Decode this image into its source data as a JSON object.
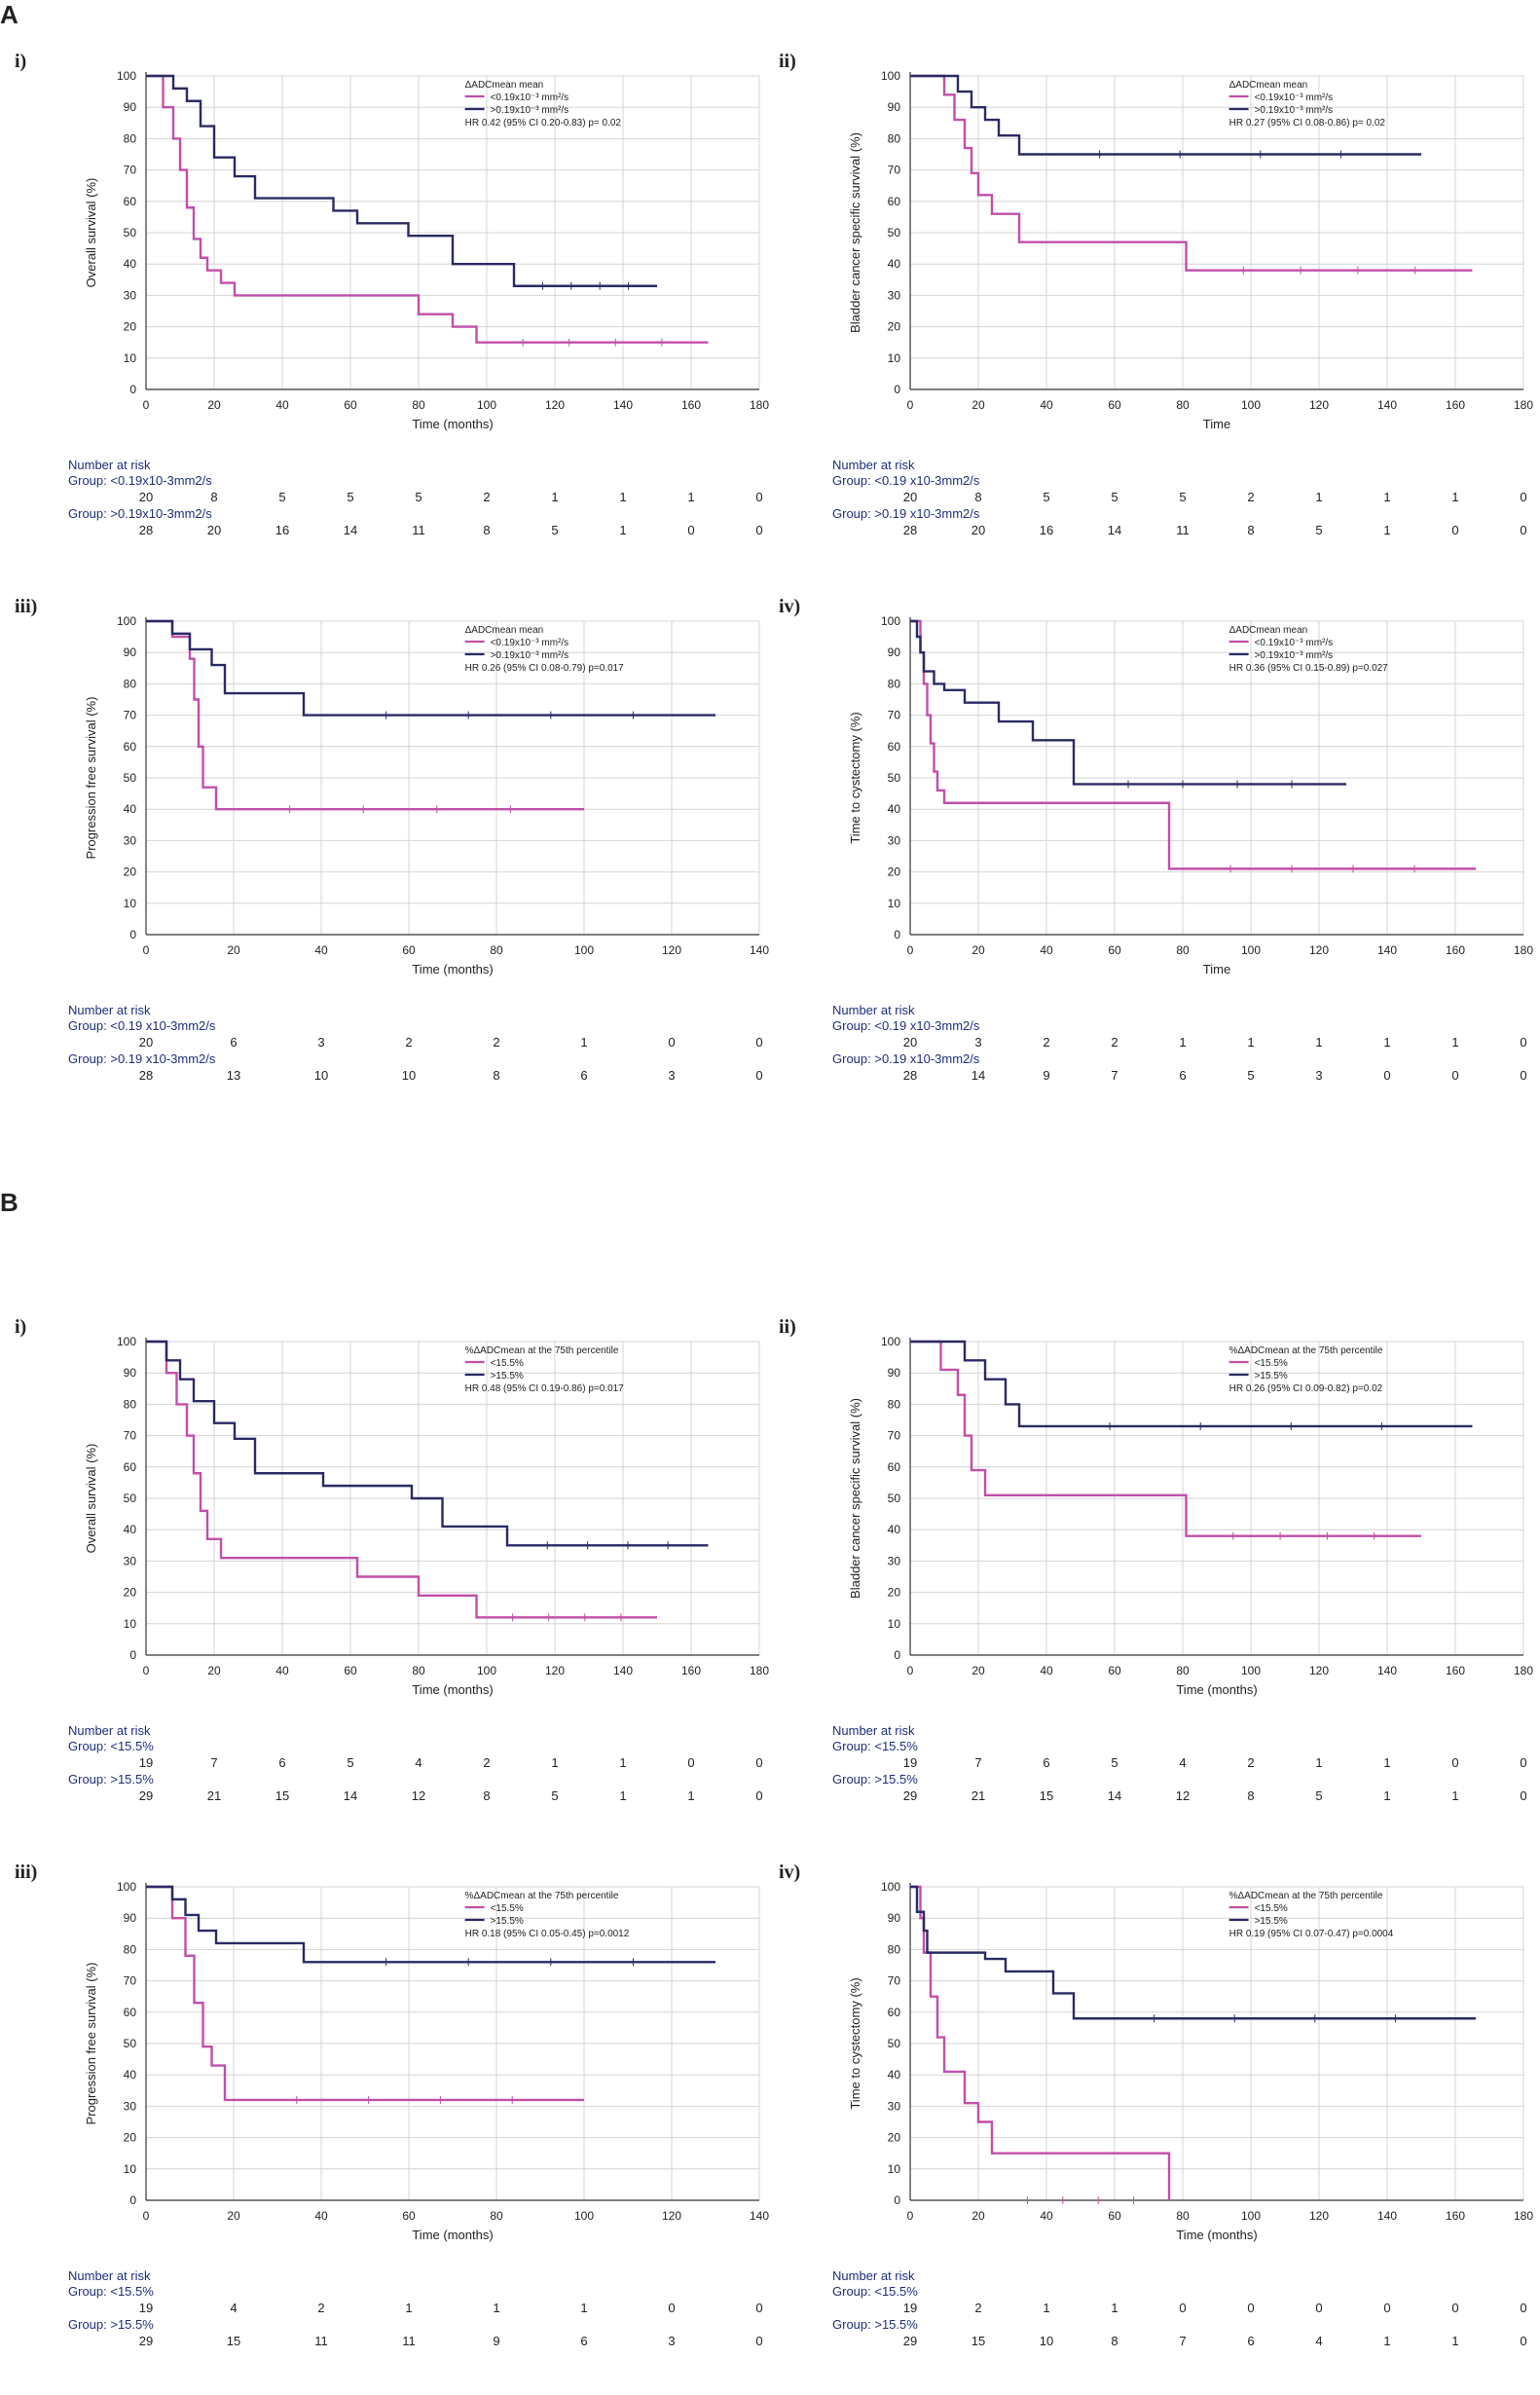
{
  "sections": [
    "A",
    "B"
  ],
  "colors": {
    "magenta": "#c14fa8",
    "navy": "#2a2a63",
    "grid": "#d4d4d4",
    "riskText": "#1f2d7a"
  },
  "panels": [
    {
      "section": "A",
      "label": "i)",
      "ylabel": "Overall survival (%)",
      "xlabel": "Time (months)",
      "xmax": 180,
      "xticks": [
        0,
        20,
        40,
        60,
        80,
        100,
        120,
        140,
        160,
        180
      ],
      "legend": [
        "ΔADCmean mean",
        "<0.19x10⁻³ mm²/s",
        ">0.19x10⁻³ mm²/s",
        "HR 0.42 (95% CI 0.20-0.83) p= 0.02"
      ],
      "risk": {
        "title": "Number at risk",
        "g1": "Group: <0.19x10-3mm2/s",
        "g2": "Group: >0.19x10-3mm2/s",
        "r1": [
          "20",
          "8",
          "5",
          "5",
          "5",
          "2",
          "1",
          "1",
          "1",
          "0"
        ],
        "r2": [
          "28",
          "20",
          "16",
          "14",
          "11",
          "8",
          "5",
          "1",
          "0",
          "0"
        ]
      }
    },
    {
      "section": "A",
      "label": "ii)",
      "ylabel": "Bladder cancer specific survival (%)",
      "xlabel": "Time",
      "xmax": 180,
      "xticks": [
        0,
        20,
        40,
        60,
        80,
        100,
        120,
        140,
        160,
        180
      ],
      "legend": [
        "ΔADCmean mean",
        "<0.19x10⁻³ mm²/s",
        ">0.19x10⁻³ mm²/s",
        "HR 0.27 (95% CI 0.08-0.86) p= 0.02"
      ],
      "risk": {
        "title": "Number at risk",
        "g1": "Group: <0.19 x10-3mm2/s",
        "g2": "Group: >0.19 x10-3mm2/s",
        "r1": [
          "20",
          "8",
          "5",
          "5",
          "5",
          "2",
          "1",
          "1",
          "1",
          "0"
        ],
        "r2": [
          "28",
          "20",
          "16",
          "14",
          "11",
          "8",
          "5",
          "1",
          "0",
          "0"
        ]
      }
    },
    {
      "section": "A",
      "label": "iii)",
      "ylabel": "Progression free survival (%)",
      "xlabel": "Time (months)",
      "xmax": 140,
      "xticks": [
        0,
        20,
        40,
        60,
        80,
        100,
        120,
        140
      ],
      "legend": [
        "ΔADCmean mean",
        "<0.19x10⁻³ mm²/s",
        ">0.19x10⁻³ mm²/s",
        "HR 0.26 (95% CI 0.08-0.79) p=0.017"
      ],
      "risk": {
        "title": "Number at risk",
        "g1": "Group: <0.19 x10-3mm2/s",
        "g2": "Group: >0.19 x10-3mm2/s",
        "r1": [
          "20",
          "6",
          "3",
          "2",
          "2",
          "1",
          "0",
          "0"
        ],
        "r2": [
          "28",
          "13",
          "10",
          "10",
          "8",
          "6",
          "3",
          "0"
        ]
      }
    },
    {
      "section": "A",
      "label": "iv)",
      "ylabel": "Time to cystectomy (%)",
      "xlabel": "Time",
      "xmax": 180,
      "xticks": [
        0,
        20,
        40,
        60,
        80,
        100,
        120,
        140,
        160,
        180
      ],
      "legend": [
        "ΔADCmean mean",
        "<0.19x10⁻³ mm²/s",
        ">0.19x10⁻³ mm²/s",
        "HR 0.36 (95% CI 0.15-0.89) p=0.027"
      ],
      "risk": {
        "title": "Number at risk",
        "g1": "Group: <0.19 x10-3mm2/s",
        "g2": "Group: >0.19 x10-3mm2/s",
        "r1": [
          "20",
          "3",
          "2",
          "2",
          "1",
          "1",
          "1",
          "1",
          "1",
          "0"
        ],
        "r2": [
          "28",
          "14",
          "9",
          "7",
          "6",
          "5",
          "3",
          "0",
          "0",
          "0"
        ]
      }
    },
    {
      "section": "B",
      "label": "i)",
      "ylabel": "Overall survival (%)",
      "xlabel": "Time (months)",
      "xmax": 180,
      "xticks": [
        0,
        20,
        40,
        60,
        80,
        100,
        120,
        140,
        160,
        180
      ],
      "legend": [
        "%ΔADCmean at the 75th percentile",
        "<15.5%",
        ">15.5%",
        "HR 0.48 (95% CI 0.19-0.86) p=0.017"
      ],
      "risk": {
        "title": "Number at risk",
        "g1": "Group: <15.5%",
        "g2": "Group: >15.5%",
        "r1": [
          "19",
          "7",
          "6",
          "5",
          "4",
          "2",
          "1",
          "1",
          "0",
          "0"
        ],
        "r2": [
          "29",
          "21",
          "15",
          "14",
          "12",
          "8",
          "5",
          "1",
          "1",
          "0"
        ]
      }
    },
    {
      "section": "B",
      "label": "ii)",
      "ylabel": "Bladder cancer specific survival (%)",
      "xlabel": "Time (months)",
      "xmax": 180,
      "xticks": [
        0,
        20,
        40,
        60,
        80,
        100,
        120,
        140,
        160,
        180
      ],
      "legend": [
        "%ΔADCmean at the 75th percentile",
        "<15.5%",
        ">15.5%",
        "HR 0.26 (95% CI 0.09-0.82) p=0.02"
      ],
      "risk": {
        "title": "Number at risk",
        "g1": "Group: <15.5%",
        "g2": "Group: >15.5%",
        "r1": [
          "19",
          "7",
          "6",
          "5",
          "4",
          "2",
          "1",
          "1",
          "0",
          "0"
        ],
        "r2": [
          "29",
          "21",
          "15",
          "14",
          "12",
          "8",
          "5",
          "1",
          "1",
          "0"
        ]
      }
    },
    {
      "section": "B",
      "label": "iii)",
      "ylabel": "Progression free survival (%)",
      "xlabel": "Time (months)",
      "xmax": 140,
      "xticks": [
        0,
        20,
        40,
        60,
        80,
        100,
        120,
        140
      ],
      "legend": [
        "%ΔADCmean at the 75th percentile",
        "<15.5%",
        ">15.5%",
        "HR 0.18 (95% CI 0.05-0.45) p=0.0012"
      ],
      "risk": {
        "title": "Number at risk",
        "g1": "Group: <15.5%",
        "g2": "Group: >15.5%",
        "r1": [
          "19",
          "4",
          "2",
          "1",
          "1",
          "1",
          "0",
          "0"
        ],
        "r2": [
          "29",
          "15",
          "11",
          "11",
          "9",
          "6",
          "3",
          "0"
        ]
      }
    },
    {
      "section": "B",
      "label": "iv)",
      "ylabel": "Time to cystectomy (%)",
      "xlabel": "Time (months)",
      "xmax": 180,
      "xticks": [
        0,
        20,
        40,
        60,
        80,
        100,
        120,
        140,
        160,
        180
      ],
      "legend": [
        "%ΔADCmean at the 75th percentile",
        "<15.5%",
        ">15.5%",
        "HR 0.19 (95% CI 0.07-0.47) p=0.0004"
      ],
      "risk": {
        "title": "Number at risk",
        "g1": "Group: <15.5%",
        "g2": "Group: >15.5%",
        "r1": [
          "19",
          "2",
          "1",
          "1",
          "0",
          "0",
          "0",
          "0",
          "0",
          "0"
        ],
        "r2": [
          "29",
          "15",
          "10",
          "8",
          "7",
          "6",
          "4",
          "1",
          "1",
          "0"
        ]
      }
    }
  ],
  "chart_data": [
    {
      "type": "line",
      "title": "A i) Overall survival",
      "xlabel": "Time (months)",
      "ylabel": "Overall survival (%)",
      "xlim": [
        0,
        180
      ],
      "ylim": [
        0,
        100
      ],
      "series": [
        {
          "name": "<0.19x10⁻³ mm²/s",
          "x": [
            0,
            5,
            8,
            10,
            12,
            14,
            16,
            18,
            22,
            26,
            33,
            80,
            90,
            97,
            165
          ],
          "y": [
            100,
            90,
            80,
            70,
            58,
            48,
            42,
            38,
            34,
            30,
            30,
            24,
            20,
            15,
            15
          ]
        },
        {
          "name": ">0.19x10⁻³ mm²/s",
          "x": [
            0,
            8,
            12,
            16,
            20,
            26,
            32,
            55,
            62,
            77,
            90,
            108,
            150
          ],
          "y": [
            100,
            96,
            92,
            84,
            74,
            68,
            61,
            57,
            53,
            49,
            40,
            33,
            33
          ]
        }
      ]
    },
    {
      "type": "line",
      "title": "A ii) Bladder cancer specific survival",
      "xlabel": "Time",
      "ylabel": "Bladder cancer specific survival (%)",
      "xlim": [
        0,
        180
      ],
      "ylim": [
        0,
        100
      ],
      "series": [
        {
          "name": "<0.19x10⁻³ mm²/s",
          "x": [
            0,
            10,
            13,
            16,
            18,
            20,
            24,
            32,
            81,
            165
          ],
          "y": [
            100,
            94,
            86,
            77,
            69,
            62,
            56,
            47,
            38,
            38
          ]
        },
        {
          "name": ">0.19x10⁻³ mm²/s",
          "x": [
            0,
            14,
            18,
            22,
            26,
            32,
            150
          ],
          "y": [
            100,
            95,
            90,
            86,
            81,
            75,
            75
          ]
        }
      ]
    },
    {
      "type": "line",
      "title": "A iii) Progression free survival",
      "xlabel": "Time (months)",
      "ylabel": "Progression free survival (%)",
      "xlim": [
        0,
        140
      ],
      "ylim": [
        0,
        100
      ],
      "series": [
        {
          "name": "<0.19x10⁻³ mm²/s",
          "x": [
            0,
            6,
            10,
            11,
            12,
            13,
            16,
            100
          ],
          "y": [
            100,
            95,
            88,
            75,
            60,
            47,
            40,
            40
          ]
        },
        {
          "name": ">0.19x10⁻³ mm²/s",
          "x": [
            0,
            6,
            10,
            15,
            18,
            36,
            130
          ],
          "y": [
            100,
            96,
            91,
            86,
            77,
            70,
            70
          ]
        }
      ]
    },
    {
      "type": "line",
      "title": "A iv) Time to cystectomy",
      "xlabel": "Time",
      "ylabel": "Time to cystectomy (%)",
      "xlim": [
        0,
        180
      ],
      "ylim": [
        0,
        100
      ],
      "series": [
        {
          "name": "<0.19x10⁻³ mm²/s",
          "x": [
            0,
            3,
            4,
            5,
            6,
            7,
            8,
            10,
            76,
            166
          ],
          "y": [
            100,
            90,
            80,
            70,
            61,
            52,
            46,
            42,
            21,
            21
          ]
        },
        {
          "name": ">0.19x10⁻³ mm²/s",
          "x": [
            0,
            2,
            3,
            4,
            7,
            10,
            16,
            26,
            36,
            48,
            128
          ],
          "y": [
            100,
            95,
            90,
            84,
            80,
            78,
            74,
            68,
            62,
            48,
            48
          ]
        }
      ]
    },
    {
      "type": "line",
      "title": "B i) Overall survival",
      "xlabel": "Time (months)",
      "ylabel": "Overall survival (%)",
      "xlim": [
        0,
        180
      ],
      "ylim": [
        0,
        100
      ],
      "series": [
        {
          "name": "<15.5%",
          "x": [
            0,
            6,
            9,
            12,
            14,
            16,
            18,
            22,
            62,
            80,
            97,
            150
          ],
          "y": [
            100,
            90,
            80,
            70,
            58,
            46,
            37,
            31,
            25,
            19,
            12,
            12
          ]
        },
        {
          "name": ">15.5%",
          "x": [
            0,
            6,
            10,
            14,
            20,
            26,
            32,
            52,
            78,
            87,
            106,
            165
          ],
          "y": [
            100,
            94,
            88,
            81,
            74,
            69,
            58,
            54,
            50,
            41,
            35,
            35
          ]
        }
      ]
    },
    {
      "type": "line",
      "title": "B ii) Bladder cancer specific survival",
      "xlabel": "Time (months)",
      "ylabel": "Bladder cancer specific survival (%)",
      "xlim": [
        0,
        180
      ],
      "ylim": [
        0,
        100
      ],
      "series": [
        {
          "name": "<15.5%",
          "x": [
            0,
            9,
            14,
            16,
            18,
            22,
            81,
            150
          ],
          "y": [
            100,
            91,
            83,
            70,
            59,
            51,
            38,
            38
          ]
        },
        {
          "name": ">15.5%",
          "x": [
            0,
            16,
            22,
            28,
            32,
            165
          ],
          "y": [
            100,
            94,
            88,
            80,
            73,
            73
          ]
        }
      ]
    },
    {
      "type": "line",
      "title": "B iii) Progression free survival",
      "xlabel": "Time (months)",
      "ylabel": "Progression free survival (%)",
      "xlim": [
        0,
        140
      ],
      "ylim": [
        0,
        100
      ],
      "series": [
        {
          "name": "<15.5%",
          "x": [
            0,
            6,
            9,
            11,
            13,
            15,
            18,
            100
          ],
          "y": [
            100,
            90,
            78,
            63,
            49,
            43,
            32,
            32
          ]
        },
        {
          "name": ">15.5%",
          "x": [
            0,
            6,
            9,
            12,
            16,
            36,
            130
          ],
          "y": [
            100,
            96,
            91,
            86,
            82,
            76,
            76
          ]
        }
      ]
    },
    {
      "type": "line",
      "title": "B iv) Time to cystectomy",
      "xlabel": "Time (months)",
      "ylabel": "Time to cystectomy (%)",
      "xlim": [
        0,
        180
      ],
      "ylim": [
        0,
        100
      ],
      "series": [
        {
          "name": "<15.5%",
          "x": [
            0,
            3,
            4,
            6,
            8,
            10,
            16,
            20,
            24,
            76
          ],
          "y": [
            100,
            90,
            79,
            65,
            52,
            41,
            31,
            25,
            15,
            0
          ]
        },
        {
          "name": ">15.5%",
          "x": [
            0,
            2,
            4,
            5,
            22,
            28,
            42,
            48,
            166
          ],
          "y": [
            100,
            92,
            86,
            79,
            77,
            73,
            66,
            58,
            58
          ]
        }
      ]
    }
  ]
}
